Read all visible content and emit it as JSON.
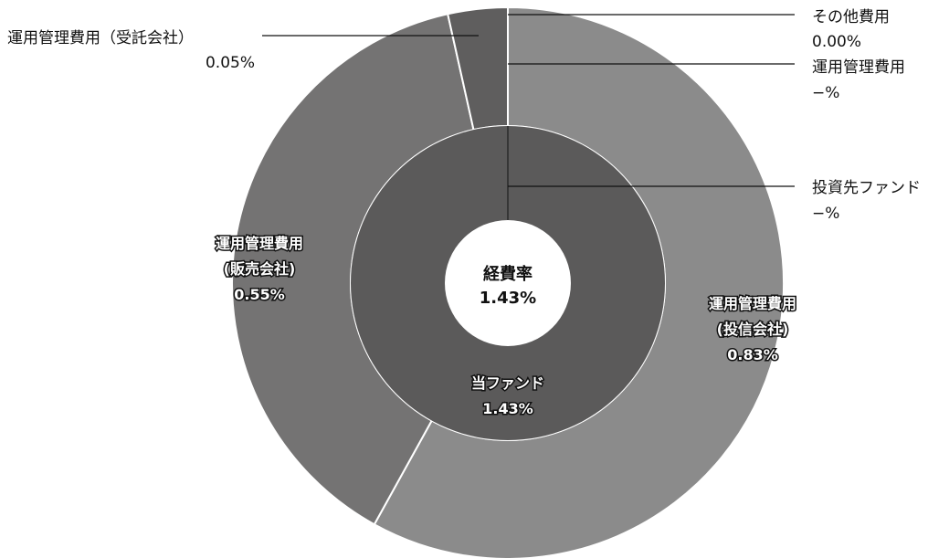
{
  "chart_data": {
    "type": "pie",
    "title": "経費率",
    "total": "1.43%",
    "inner_ring": [
      {
        "name": "当ファンド",
        "value": 1.43,
        "label": "1.43%"
      },
      {
        "name": "投資先ファンド",
        "value": 0,
        "label": "−%"
      }
    ],
    "outer_ring": [
      {
        "name": "運用管理費用（投信会社）",
        "value": 0.83,
        "label": "0.83%"
      },
      {
        "name": "運用管理費用（販売会社）",
        "value": 0.55,
        "label": "0.55%"
      },
      {
        "name": "運用管理費用（受託会社）",
        "value": 0.05,
        "label": "0.05%"
      },
      {
        "name": "運用管理費用",
        "value": 0,
        "label": "−%"
      },
      {
        "name": "その他費用",
        "value": 0.0,
        "label": "0.00%"
      }
    ],
    "colors": {
      "inner": "#5b5a5a",
      "outer_trustee_company": "#8b8b8b",
      "outer_sales_company": "#747373",
      "outer_custodian": "#5f5e5e",
      "separator": "#ffffff",
      "leader_line": "#111111"
    }
  },
  "labels": {
    "center_title": "経費率",
    "center_value": "1.43%",
    "inner_main_name": "当ファンド",
    "inner_main_value": "1.43%",
    "sales_line1": "運用管理費用",
    "sales_line2": "(販売会社)",
    "sales_value": "0.55%",
    "trust_line1": "運用管理費用",
    "trust_line2": "(投信会社)",
    "trust_value": "0.83%",
    "custodian_name": "運用管理費用（受託会社）",
    "custodian_value": "0.05%",
    "other_name": "その他費用",
    "other_value": "0.00%",
    "mgmt_name": "運用管理費用",
    "mgmt_value": "−%",
    "invest_name": "投資先ファンド",
    "invest_value": "−%"
  }
}
